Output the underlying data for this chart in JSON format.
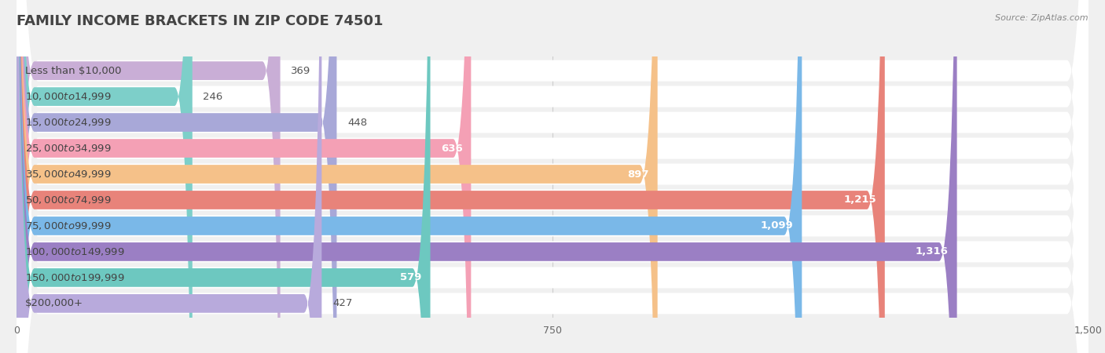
{
  "title": "FAMILY INCOME BRACKETS IN ZIP CODE 74501",
  "source": "Source: ZipAtlas.com",
  "categories": [
    "Less than $10,000",
    "$10,000 to $14,999",
    "$15,000 to $24,999",
    "$25,000 to $34,999",
    "$35,000 to $49,999",
    "$50,000 to $74,999",
    "$75,000 to $99,999",
    "$100,000 to $149,999",
    "$150,000 to $199,999",
    "$200,000+"
  ],
  "values": [
    369,
    246,
    448,
    636,
    897,
    1215,
    1099,
    1316,
    579,
    427
  ],
  "bar_colors": [
    "#c9aed6",
    "#7dcfc9",
    "#a8a8d8",
    "#f4a0b5",
    "#f5c189",
    "#e8837a",
    "#7ab8e8",
    "#9b7fc4",
    "#6dc8c0",
    "#b8aadc"
  ],
  "xlim": [
    0,
    1500
  ],
  "xticks": [
    0,
    750,
    1500
  ],
  "bg_color": "#f0f0f0",
  "bar_bg_color": "#ffffff",
  "row_bg_color": "#f0f0f0",
  "title_fontsize": 13,
  "label_fontsize": 9.5,
  "value_fontsize": 9.5,
  "value_threshold": 500
}
